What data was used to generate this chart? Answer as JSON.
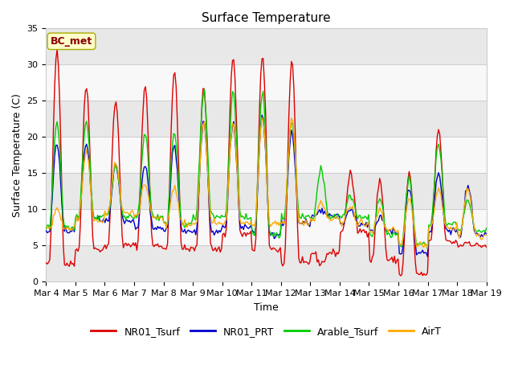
{
  "title": "Surface Temperature",
  "xlabel": "Time",
  "ylabel": "Surface Temperature (C)",
  "ylim": [
    0,
    35
  ],
  "x_tick_labels": [
    "Mar 4",
    "Mar 5",
    "Mar 6",
    "Mar 7",
    "Mar 8",
    "Mar 9",
    "Mar 10",
    "Mar 11",
    "Mar 12",
    "Mar 13",
    "Mar 14",
    "Mar 15",
    "Mar 16",
    "Mar 17",
    "Mar 18",
    "Mar 19"
  ],
  "series_colors": [
    "#dd0000",
    "#0000cc",
    "#00cc00",
    "#ffaa00"
  ],
  "series_names": [
    "NR01_Tsurf",
    "NR01_PRT",
    "Arable_Tsurf",
    "AirT"
  ],
  "annotation_text": "BC_met",
  "annotation_color": "#880000",
  "annotation_bg": "#ffffcc",
  "annotation_edge": "#aaaa00",
  "bg_color": "#ffffff",
  "plot_bg_light": "#e8e8e8",
  "plot_bg_dark": "#f8f8f8",
  "title_fontsize": 11,
  "label_fontsize": 9,
  "tick_fontsize": 8,
  "legend_fontsize": 9,
  "line_width": 1.0,
  "n_days": 15,
  "peaks_red": [
    32,
    27,
    25,
    27,
    29,
    27,
    31,
    31,
    30.5,
    2.5,
    15,
    14,
    15,
    21,
    5.5
  ],
  "troughs_red": [
    2.5,
    4.5,
    5.0,
    5.0,
    4.5,
    4.5,
    6.5,
    4.5,
    2.5,
    4.0,
    7.0,
    3.0,
    1.0,
    5.5,
    5.0
  ],
  "peaks_blue": [
    19,
    19,
    16,
    16,
    19,
    22,
    22,
    23,
    20.5,
    10,
    10,
    9,
    13,
    15,
    13
  ],
  "troughs_blue": [
    7,
    8.5,
    8.5,
    7.5,
    7.0,
    7.0,
    7.5,
    6.5,
    8.0,
    9.0,
    8.0,
    7.0,
    4.0,
    7.0,
    6.5
  ],
  "peaks_green": [
    22,
    22,
    16,
    20.5,
    20.5,
    26,
    26,
    26,
    22,
    15.5,
    12,
    11.5,
    14,
    19,
    11
  ],
  "troughs_green": [
    7.5,
    9,
    9,
    9,
    8,
    9,
    9,
    6.5,
    9,
    9,
    9,
    6.5,
    5,
    8,
    7
  ],
  "peaks_orange": [
    10,
    18,
    16.5,
    13.5,
    13,
    22,
    22,
    22.5,
    22.5,
    11,
    10.5,
    10,
    11.5,
    13,
    13
  ],
  "troughs_orange": [
    7.5,
    8.5,
    9.5,
    9,
    8,
    8,
    8,
    8,
    8,
    8.5,
    8,
    7,
    5,
    7.5,
    6.5
  ]
}
